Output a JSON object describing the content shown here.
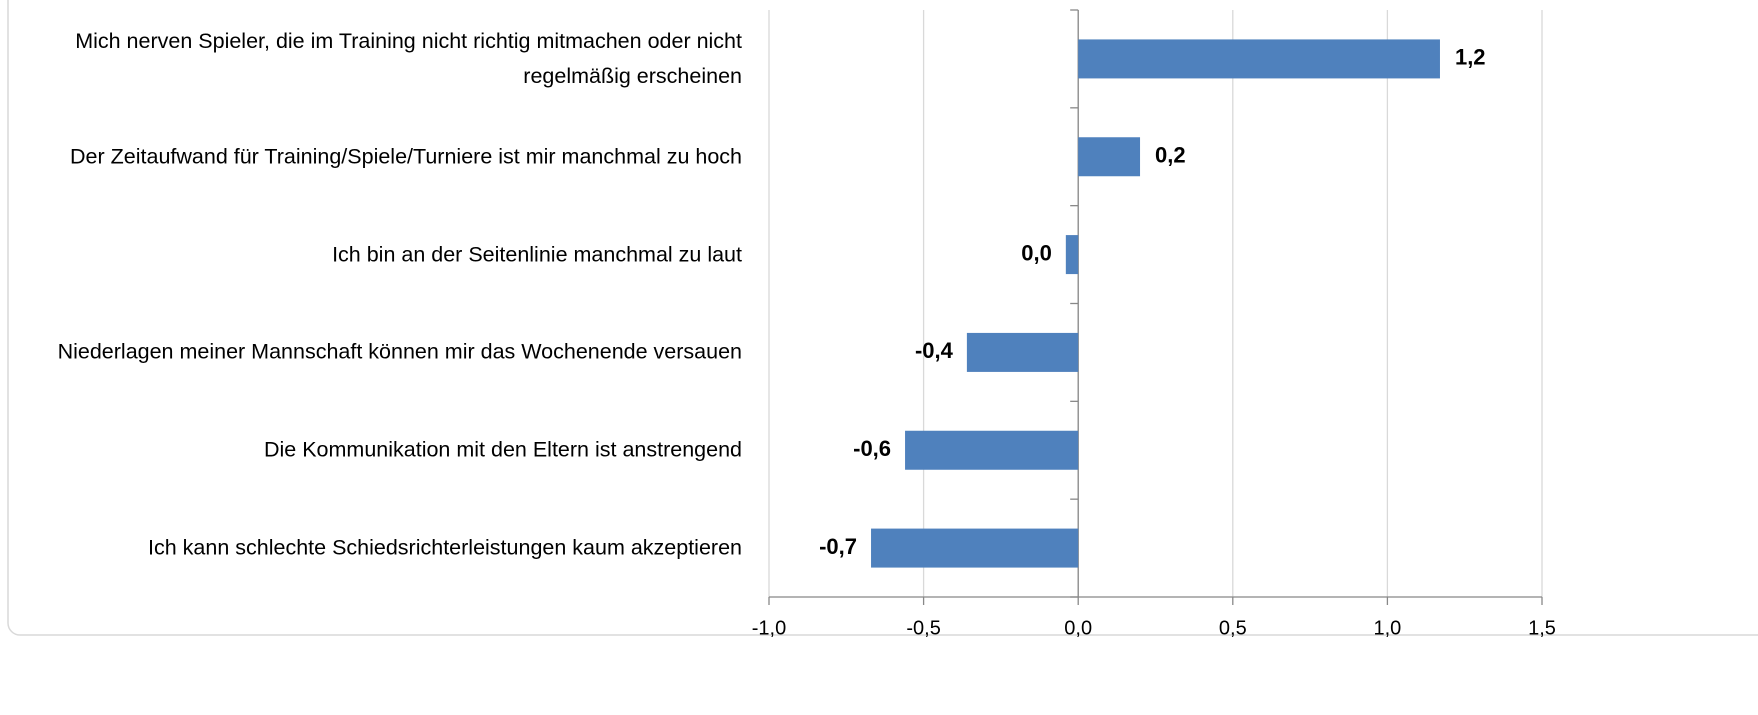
{
  "chart_data": {
    "type": "barh",
    "categories": [
      "Mich nerven Spieler, die im Training nicht richtig mitmachen oder nicht regelmäßig erscheinen",
      "Der Zeitaufwand für Training/Spiele/Turniere ist mir manchmal zu hoch",
      "Ich bin an der Seitenlinie manchmal zu laut",
      "Niederlagen meiner Mannschaft können mir das Wochenende versauen",
      "Die Kommunikation mit den Eltern ist anstrengend",
      "Ich kann schlechte Schiedsrichterleistungen kaum akzeptieren"
    ],
    "values": [
      1.17,
      0.2,
      -0.04,
      -0.36,
      -0.56,
      -0.67
    ],
    "value_labels": [
      "1,2",
      "0,2",
      "0,0",
      "-0,4",
      "-0,6",
      "-0,7"
    ],
    "color": "#4f81bd",
    "xlim": [
      -1,
      1.5
    ],
    "xticks": [
      {
        "value": -1,
        "label": "-1,0"
      },
      {
        "value": -0.5,
        "label": "-0,5"
      },
      {
        "value": 0,
        "label": "0,0"
      },
      {
        "value": 0.5,
        "label": "0,5"
      },
      {
        "value": 1,
        "label": "1,0"
      },
      {
        "value": 1.5,
        "label": "1,5"
      }
    ],
    "grid": true
  }
}
